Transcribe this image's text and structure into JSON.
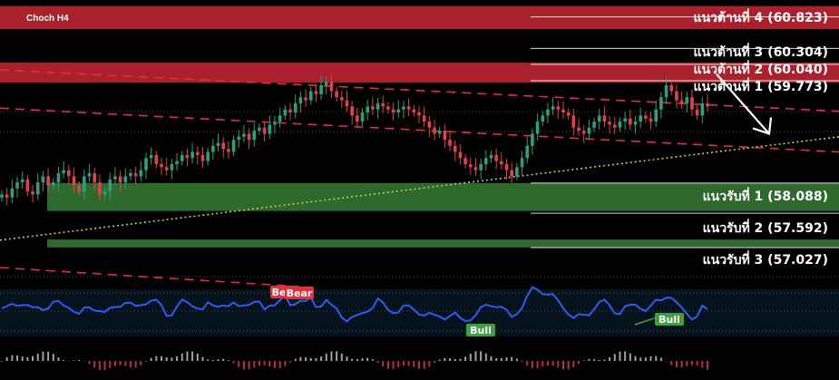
{
  "header": {
    "symbol_timeframe": "Choch H4"
  },
  "chart_data": {
    "type": "candlestick",
    "title": "Choch H4",
    "ylim": [
      56.55,
      61.1
    ],
    "resistance_zones": [
      {
        "name": "แนวต้านที่ 4 (60.823)",
        "value": 60.823,
        "zone": [
          60.62,
          61.0
        ]
      },
      {
        "name": "แนวต้านที่ 3 (60.304)",
        "value": 60.304,
        "zone": null
      },
      {
        "name": "แนวต้านที่ 2 (60.040)",
        "value": 60.04,
        "zone": [
          59.74,
          60.07
        ]
      },
      {
        "name": "แนวต้านที่ 1 (59.773)",
        "value": 59.773,
        "zone": null
      }
    ],
    "support_zones": [
      {
        "name": "แนวรับที่ 1 (58.088)",
        "value": 58.088,
        "zone": [
          57.63,
          58.09
        ]
      },
      {
        "name": "แนวรับที่ 2 (57.592)",
        "value": 57.592,
        "zone": null
      },
      {
        "name": "แนวรับที่ 3 (57.027)",
        "value": 57.027,
        "zone": [
          57.03,
          57.16
        ]
      }
    ],
    "trendlines": [
      {
        "kind": "resistance-dashed",
        "from": 59.95,
        "to": 59.27
      },
      {
        "kind": "channel-dashed",
        "from": 59.32,
        "to": 58.6
      },
      {
        "kind": "support-dotted",
        "from": 57.15,
        "to": 58.85
      }
    ],
    "projection_arrow": {
      "from": 59.88,
      "to": 58.9
    },
    "close_approx": [
      57.9,
      57.85,
      58.0,
      58.1,
      58.15,
      57.95,
      57.9,
      58.1,
      58.2,
      58.05,
      58.1,
      58.25,
      58.3,
      58.2,
      58.05,
      57.95,
      58.2,
      58.25,
      58.1,
      57.9,
      57.95,
      58.15,
      58.2,
      58.1,
      58.2,
      58.25,
      58.2,
      58.3,
      58.5,
      58.55,
      58.4,
      58.35,
      58.3,
      58.4,
      58.45,
      58.55,
      58.5,
      58.6,
      58.55,
      58.45,
      58.6,
      58.7,
      58.75,
      58.65,
      58.6,
      58.8,
      58.85,
      58.9,
      58.8,
      58.95,
      59.0,
      58.9,
      59.05,
      59.1,
      59.2,
      59.3,
      59.25,
      59.4,
      59.5,
      59.45,
      59.6,
      59.55,
      59.7,
      59.75,
      59.6,
      59.5,
      59.45,
      59.35,
      59.2,
      59.1,
      59.25,
      59.35,
      59.3,
      59.4,
      59.35,
      59.3,
      59.25,
      59.3,
      59.35,
      59.3,
      59.25,
      59.2,
      59.1,
      59.0,
      58.9,
      58.95,
      58.8,
      58.7,
      58.6,
      58.5,
      58.4,
      58.35,
      58.3,
      58.4,
      58.5,
      58.55,
      58.45,
      58.4,
      58.3,
      58.2,
      58.35,
      58.5,
      58.7,
      58.9,
      59.1,
      59.2,
      59.3,
      59.35,
      59.3,
      59.25,
      59.2,
      59.0,
      58.95,
      58.9,
      59.0,
      59.1,
      59.2,
      59.1,
      59.05,
      59.0,
      59.1,
      59.15,
      59.05,
      59.1,
      59.2,
      59.15,
      59.1,
      59.3,
      59.5,
      59.7,
      59.6,
      59.45,
      59.4,
      59.5,
      59.3,
      59.2,
      59.4,
      59.35
    ]
  },
  "indicator": {
    "tags": [
      {
        "label": "Bear",
        "kind": "bear"
      },
      {
        "label": "Bear",
        "kind": "bear"
      },
      {
        "label": "Bull",
        "kind": "bull"
      },
      {
        "label": "Bull",
        "kind": "bull"
      }
    ],
    "colors": {
      "line": "#2d5cf0",
      "bull": "#3fa03f",
      "bear": "#e0303b",
      "resistance_zone": "#b3222e",
      "support_zone": "#2e6a2e"
    }
  }
}
